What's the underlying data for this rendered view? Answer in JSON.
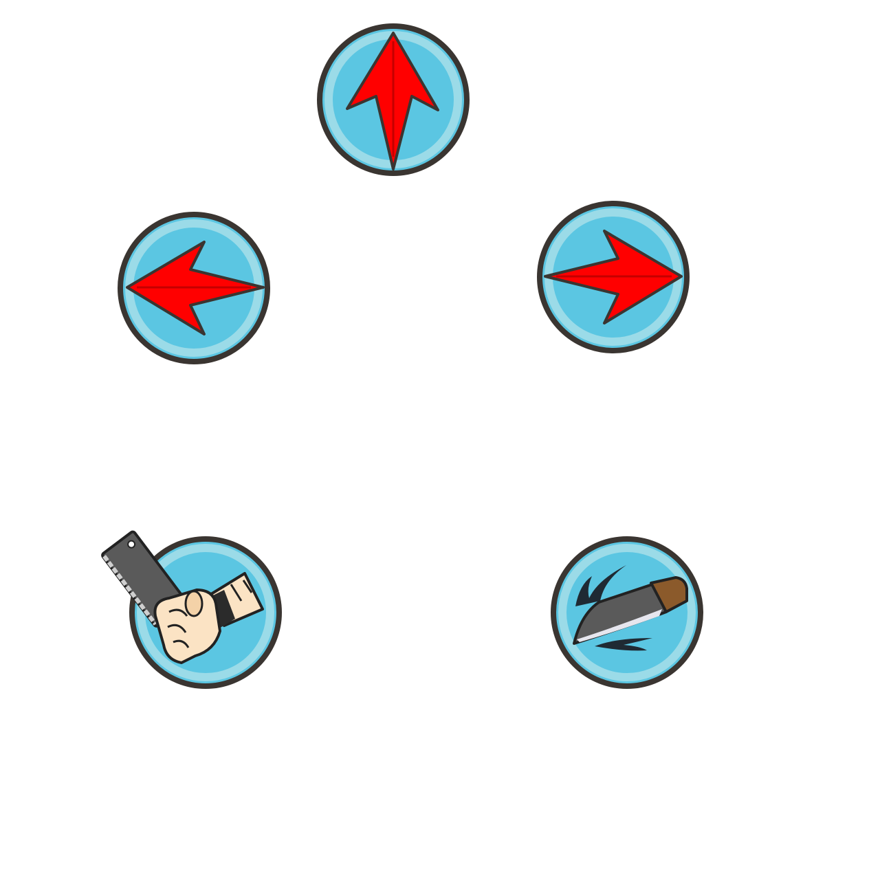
{
  "controls": [
    {
      "id": "up",
      "icon": "arrow-up-icon"
    },
    {
      "id": "left",
      "icon": "arrow-left-icon"
    },
    {
      "id": "right",
      "icon": "arrow-right-icon"
    },
    {
      "id": "attack",
      "icon": "cleaver-fist-icon"
    },
    {
      "id": "throw",
      "icon": "flying-knife-icon"
    }
  ],
  "colors": {
    "button_outline": "#3a3531",
    "button_ring": "#9bdbe8",
    "button_fill": "#5bc6e2",
    "arrow_fill": "#ff0000",
    "arrow_stroke": "#3a3531",
    "blade": "#5a5a5a",
    "blade_edge": "#e6e6ee",
    "handle": "#8b5a2b",
    "skin": "#fbe3c4"
  }
}
